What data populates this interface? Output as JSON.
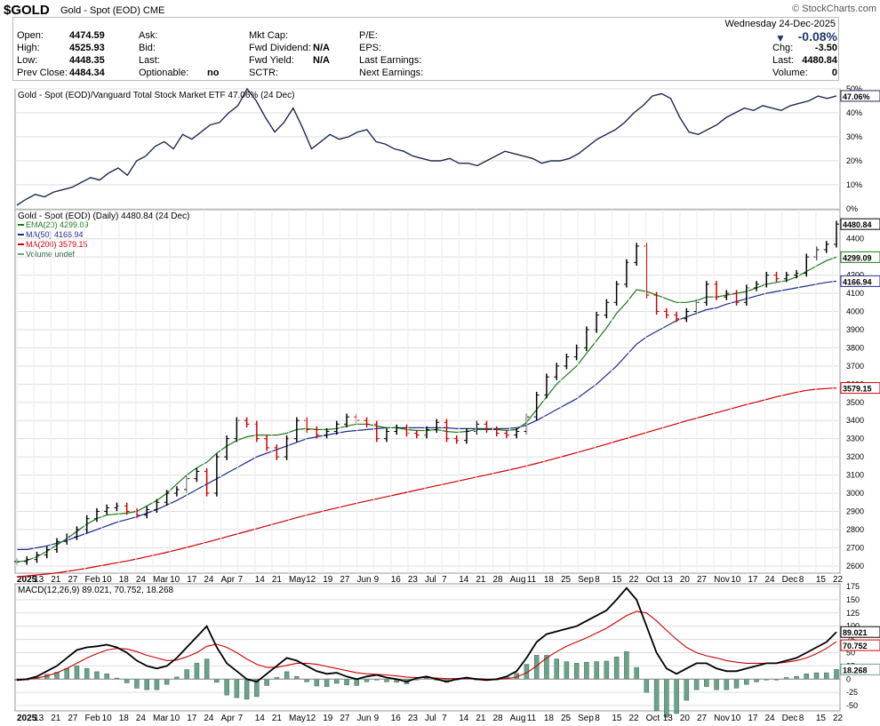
{
  "header": {
    "symbol": "$GOLD",
    "subtitle": "Gold - Spot (EOD)  CME",
    "brand": "© StockCharts.com",
    "date": "Wednesday  24-Dec-2025",
    "change_pct": "-0.08%",
    "col1_labels": [
      "Open:",
      "High:",
      "Low:",
      "Prev Close:"
    ],
    "col1_values": [
      "4474.59",
      "4525.93",
      "4448.35",
      "4484.34"
    ],
    "col2_labels": [
      "Ask:",
      "Bid:",
      "Last:",
      "Optionable:"
    ],
    "col2_values": [
      "",
      "",
      "",
      "no"
    ],
    "col3_labels": [
      "Mkt Cap:",
      "Fwd Dividend:",
      "Fwd Yield:",
      "SCTR:"
    ],
    "col3_values": [
      "",
      "N/A",
      "N/A",
      ""
    ],
    "col4_labels": [
      "P/E:",
      "EPS:",
      "Last Earnings:",
      "Next Earnings:"
    ],
    "col5_labels": [
      "Chg:",
      "Last:",
      "Volume:"
    ],
    "col5_values": [
      "-3.50",
      "4480.84",
      "0"
    ]
  },
  "colors": {
    "price": "#000000",
    "down": "#cc0000",
    "ema20": "#1a7a1a",
    "ma50": "#1f2a8a",
    "ma200": "#cc0000",
    "ratio": "#1f2a4a",
    "macd": "#000000",
    "signal": "#cc0000",
    "hist": "#6aa38a",
    "grid": "#dddddd"
  },
  "chart_data": [
    {
      "type": "line",
      "title": "Gold - Spot (EOD)/Vanguard Total Stock Market ETF 47.06% (24 Dec)",
      "last_value_label": "47.06%",
      "ylim": [
        0,
        50
      ],
      "yticks": [
        0,
        10,
        20,
        30,
        40,
        50
      ],
      "ytick_labels": [
        "0%",
        "10%",
        "20%",
        "30%",
        "40%",
        "50%"
      ],
      "series": [
        {
          "values": [
            1.5,
            4,
            6,
            5,
            7,
            8,
            9,
            11,
            13,
            12,
            15,
            17,
            14,
            20,
            22,
            26,
            28,
            25,
            31,
            29,
            32,
            35,
            36,
            40,
            43,
            50,
            45,
            38,
            32,
            36,
            42,
            34,
            25,
            28,
            31,
            29,
            30,
            32,
            33,
            28,
            27,
            25,
            24,
            22,
            21,
            20,
            20,
            21,
            19,
            19,
            18,
            20,
            22,
            24,
            23,
            22,
            21,
            19,
            20,
            20,
            21,
            23,
            26,
            29,
            31,
            33,
            36,
            40,
            43,
            47,
            48,
            46,
            38,
            32,
            31,
            33,
            35,
            38,
            40,
            42,
            41,
            43,
            42,
            41,
            43,
            44,
            45,
            47,
            46,
            47.06
          ]
        }
      ]
    },
    {
      "type": "line",
      "title": "Gold - Spot (EOD) (Daily) 4480.84 (24 Dec)",
      "legend": [
        "EMA(20) 4299.09",
        "MA(50) 4166.94",
        "MA(200) 3579.15",
        "Volume undef"
      ],
      "last_value_labels": [
        "4480.84",
        "4299.09",
        "4166.94",
        "3579.15"
      ],
      "ylim": [
        2560,
        4560
      ],
      "yticks": [
        2600,
        2700,
        2800,
        2900,
        3000,
        3100,
        3200,
        3300,
        3400,
        3500,
        3600,
        3700,
        3800,
        3900,
        4000,
        4100,
        4200,
        4300,
        4400
      ],
      "x_labels": [
        "2025",
        "13",
        "21",
        "27",
        "Feb",
        "10",
        "18",
        "24",
        "Mar",
        "10",
        "17",
        "24",
        "Apr",
        "7",
        "14",
        "21",
        "May",
        "12",
        "19",
        "27",
        "Jun",
        "9",
        "16",
        "23",
        "Jul",
        "7",
        "14",
        "21",
        "28",
        "Aug",
        "11",
        "18",
        "25",
        "Sep",
        "8",
        "15",
        "22",
        "Oct",
        "13",
        "20",
        "27",
        "Nov",
        "10",
        "17",
        "24",
        "Dec",
        "8",
        "15",
        "22"
      ],
      "series": [
        {
          "name": "Gold - Spot (EOD)",
          "values": [
            2624,
            2635,
            2660,
            2690,
            2735,
            2760,
            2800,
            2860,
            2900,
            2920,
            2930,
            2900,
            2880,
            2910,
            2950,
            3000,
            3020,
            3080,
            3120,
            3000,
            3200,
            3300,
            3400,
            3380,
            3300,
            3250,
            3200,
            3300,
            3400,
            3350,
            3320,
            3340,
            3380,
            3420,
            3400,
            3380,
            3300,
            3340,
            3360,
            3330,
            3320,
            3350,
            3390,
            3300,
            3290,
            3340,
            3380,
            3350,
            3330,
            3320,
            3340,
            3420,
            3540,
            3640,
            3700,
            3750,
            3800,
            3900,
            3980,
            4050,
            4150,
            4270,
            4360,
            4090,
            4000,
            3980,
            3960,
            4000,
            4050,
            4150,
            4080,
            4100,
            4050,
            4130,
            4150,
            4200,
            4180,
            4200,
            4210,
            4300,
            4340,
            4370,
            4480.84
          ]
        },
        {
          "name": "EMA(20)",
          "values": [
            2620,
            2630,
            2650,
            2680,
            2715,
            2750,
            2790,
            2830,
            2860,
            2880,
            2885,
            2890,
            2900,
            2930,
            2960,
            3000,
            3050,
            3100,
            3140,
            3170,
            3220,
            3260,
            3290,
            3310,
            3320,
            3320,
            3320,
            3330,
            3350,
            3355,
            3350,
            3350,
            3355,
            3370,
            3380,
            3380,
            3370,
            3360,
            3360,
            3350,
            3345,
            3345,
            3350,
            3340,
            3335,
            3340,
            3350,
            3350,
            3350,
            3345,
            3350,
            3390,
            3460,
            3530,
            3600,
            3650,
            3700,
            3770,
            3840,
            3910,
            3990,
            4050,
            4120,
            4110,
            4090,
            4070,
            4050,
            4050,
            4060,
            4080,
            4080,
            4090,
            4100,
            4110,
            4130,
            4150,
            4160,
            4170,
            4190,
            4220,
            4250,
            4280,
            4299.09
          ]
        },
        {
          "name": "MA(50)",
          "values": [
            2690,
            2690,
            2700,
            2710,
            2725,
            2740,
            2760,
            2780,
            2800,
            2820,
            2840,
            2855,
            2870,
            2890,
            2910,
            2935,
            2960,
            2990,
            3020,
            3050,
            3080,
            3110,
            3140,
            3170,
            3200,
            3220,
            3240,
            3260,
            3280,
            3300,
            3310,
            3320,
            3330,
            3340,
            3345,
            3350,
            3355,
            3360,
            3360,
            3360,
            3360,
            3360,
            3360,
            3360,
            3355,
            3355,
            3355,
            3355,
            3355,
            3355,
            3360,
            3375,
            3400,
            3430,
            3460,
            3490,
            3520,
            3560,
            3600,
            3650,
            3700,
            3760,
            3820,
            3860,
            3890,
            3920,
            3950,
            3970,
            3990,
            4010,
            4020,
            4040,
            4055,
            4070,
            4085,
            4100,
            4110,
            4120,
            4130,
            4140,
            4150,
            4160,
            4166.94
          ]
        },
        {
          "name": "MA(200)",
          "values": [
            2540,
            2545,
            2550,
            2555,
            2562,
            2570,
            2578,
            2587,
            2597,
            2607,
            2617,
            2627,
            2638,
            2650,
            2662,
            2675,
            2688,
            2702,
            2716,
            2730,
            2745,
            2760,
            2775,
            2790,
            2805,
            2820,
            2835,
            2850,
            2865,
            2880,
            2893,
            2906,
            2919,
            2932,
            2945,
            2957,
            2969,
            2981,
            2993,
            3005,
            3017,
            3029,
            3041,
            3053,
            3065,
            3077,
            3089,
            3101,
            3113,
            3125,
            3137,
            3150,
            3164,
            3178,
            3193,
            3208,
            3223,
            3238,
            3254,
            3270,
            3286,
            3302,
            3318,
            3334,
            3350,
            3366,
            3382,
            3398,
            3413,
            3428,
            3443,
            3458,
            3473,
            3488,
            3502,
            3516,
            3530,
            3543,
            3555,
            3566,
            3572,
            3576,
            3579.15
          ]
        }
      ]
    },
    {
      "type": "line",
      "title": "MACD(12,26,9) 89.021, 70.752, 18.268",
      "last_value_labels": [
        "89.021",
        "70.752",
        "18.268"
      ],
      "ylim": [
        -60,
        180
      ],
      "yticks": [
        -50,
        -25,
        0,
        25,
        50,
        75,
        100,
        125,
        150,
        175
      ],
      "series": [
        {
          "name": "MACD(12,26,9)",
          "values": [
            -2,
            0,
            5,
            15,
            25,
            40,
            55,
            60,
            62,
            65,
            60,
            50,
            35,
            25,
            20,
            25,
            40,
            60,
            80,
            100,
            60,
            30,
            15,
            0,
            -5,
            10,
            25,
            40,
            35,
            25,
            15,
            10,
            12,
            5,
            0,
            5,
            8,
            3,
            0,
            -5,
            2,
            5,
            0,
            -5,
            0,
            3,
            0,
            -2,
            0,
            5,
            15,
            40,
            70,
            85,
            90,
            95,
            100,
            110,
            120,
            130,
            150,
            172,
            150,
            100,
            50,
            20,
            10,
            20,
            30,
            30,
            20,
            15,
            15,
            20,
            25,
            30,
            30,
            35,
            40,
            50,
            60,
            70,
            89.021
          ]
        },
        {
          "name": "signal",
          "values": [
            0,
            0,
            2,
            6,
            12,
            20,
            30,
            40,
            48,
            55,
            58,
            57,
            52,
            45,
            40,
            35,
            36,
            42,
            50,
            62,
            66,
            60,
            50,
            38,
            28,
            22,
            22,
            26,
            30,
            30,
            28,
            24,
            20,
            16,
            12,
            10,
            9,
            8,
            6,
            4,
            3,
            3,
            2,
            1,
            1,
            1,
            1,
            0,
            0,
            1,
            4,
            12,
            25,
            40,
            52,
            62,
            70,
            78,
            87,
            96,
            108,
            120,
            128,
            125,
            110,
            92,
            75,
            60,
            50,
            44,
            40,
            35,
            32,
            30,
            30,
            30,
            30,
            32,
            35,
            40,
            48,
            58,
            70.752
          ]
        },
        {
          "name": "histogram",
          "values": [
            -2,
            0,
            3,
            9,
            13,
            20,
            25,
            20,
            14,
            10,
            2,
            -7,
            -17,
            -20,
            -20,
            -10,
            4,
            18,
            30,
            38,
            -6,
            -30,
            -35,
            -38,
            -33,
            -12,
            3,
            14,
            5,
            -5,
            -13,
            -14,
            -8,
            -11,
            -12,
            -5,
            -1,
            -5,
            -6,
            -9,
            -1,
            2,
            -2,
            -6,
            -1,
            2,
            -1,
            -2,
            0,
            4,
            11,
            28,
            45,
            45,
            38,
            33,
            30,
            32,
            33,
            34,
            42,
            52,
            22,
            -25,
            -60,
            -72,
            -65,
            -40,
            -20,
            -14,
            -20,
            -20,
            -17,
            -10,
            -5,
            0,
            0,
            3,
            5,
            10,
            12,
            12,
            18.268
          ]
        }
      ]
    }
  ]
}
